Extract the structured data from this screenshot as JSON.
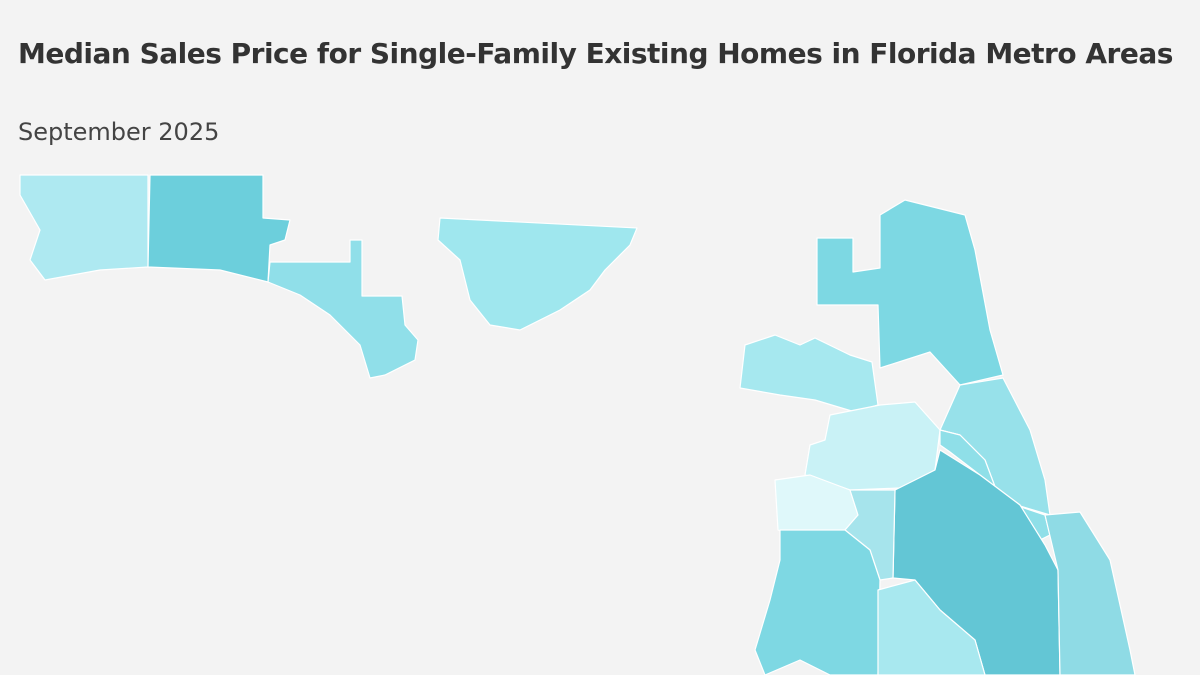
{
  "header": {
    "title": "Median Sales Price for Single-Family Existing Homes in Florida Metro Areas",
    "subtitle": "September 2025"
  }
}
